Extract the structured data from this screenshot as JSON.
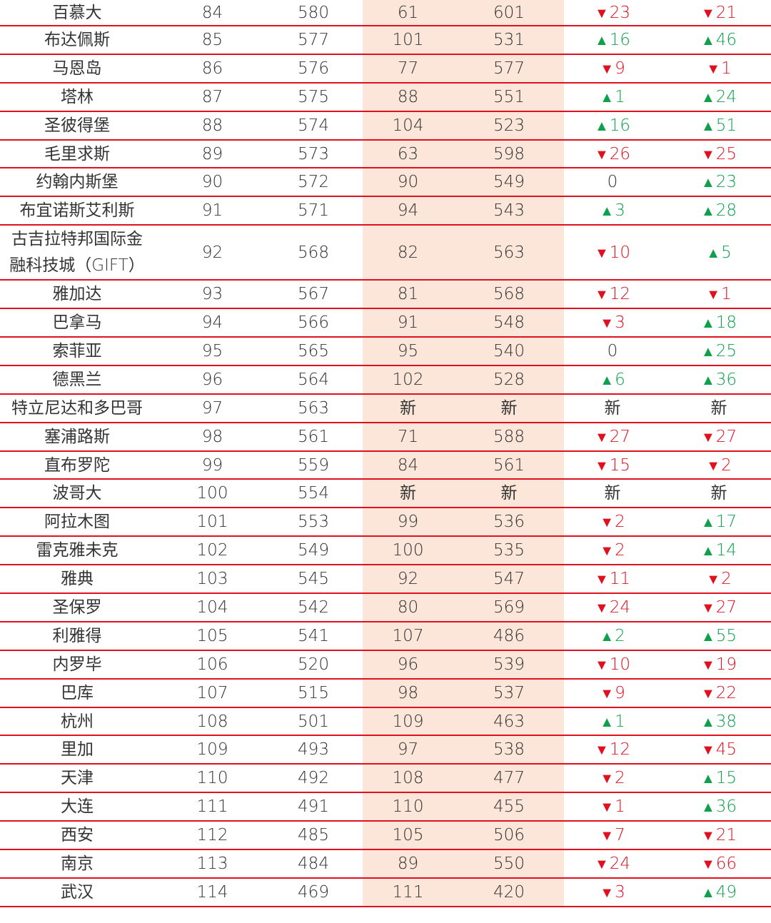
{
  "rows": [
    {
      "city": "百慕大",
      "rank": "84",
      "score": "580",
      "prev_rank": "61",
      "prev_score": "601",
      "change1": {
        "dir": "down",
        "value": "23"
      },
      "change2": {
        "dir": "down",
        "value": "21"
      }
    },
    {
      "city": "布达佩斯",
      "rank": "85",
      "score": "577",
      "prev_rank": "101",
      "prev_score": "531",
      "change1": {
        "dir": "up",
        "value": "16"
      },
      "change2": {
        "dir": "up",
        "value": "46"
      }
    },
    {
      "city": "马恩岛",
      "rank": "86",
      "score": "576",
      "prev_rank": "77",
      "prev_score": "577",
      "change1": {
        "dir": "down",
        "value": "9"
      },
      "change2": {
        "dir": "down",
        "value": "1"
      }
    },
    {
      "city": "塔林",
      "rank": "87",
      "score": "575",
      "prev_rank": "88",
      "prev_score": "551",
      "change1": {
        "dir": "up",
        "value": "1"
      },
      "change2": {
        "dir": "up",
        "value": "24"
      }
    },
    {
      "city": "圣彼得堡",
      "rank": "88",
      "score": "574",
      "prev_rank": "104",
      "prev_score": "523",
      "change1": {
        "dir": "up",
        "value": "16"
      },
      "change2": {
        "dir": "up",
        "value": "51"
      }
    },
    {
      "city": "毛里求斯",
      "rank": "89",
      "score": "573",
      "prev_rank": "63",
      "prev_score": "598",
      "change1": {
        "dir": "down",
        "value": "26"
      },
      "change2": {
        "dir": "down",
        "value": "25"
      }
    },
    {
      "city": "约翰内斯堡",
      "rank": "90",
      "score": "572",
      "prev_rank": "90",
      "prev_score": "549",
      "change1": {
        "dir": "none",
        "value": "0"
      },
      "change2": {
        "dir": "up",
        "value": "23"
      }
    },
    {
      "city": "布宜诺斯艾利斯",
      "rank": "91",
      "score": "571",
      "prev_rank": "94",
      "prev_score": "543",
      "change1": {
        "dir": "up",
        "value": "3"
      },
      "change2": {
        "dir": "up",
        "value": "28"
      }
    },
    {
      "city": "古吉拉特邦国际金\n融科技城（GIFT）",
      "rank": "92",
      "score": "568",
      "prev_rank": "82",
      "prev_score": "563",
      "change1": {
        "dir": "down",
        "value": "10"
      },
      "change2": {
        "dir": "up",
        "value": "5"
      }
    },
    {
      "city": "雅加达",
      "rank": "93",
      "score": "567",
      "prev_rank": "81",
      "prev_score": "568",
      "change1": {
        "dir": "down",
        "value": "12"
      },
      "change2": {
        "dir": "down",
        "value": "1"
      }
    },
    {
      "city": "巴拿马",
      "rank": "94",
      "score": "566",
      "prev_rank": "91",
      "prev_score": "548",
      "change1": {
        "dir": "down",
        "value": "3"
      },
      "change2": {
        "dir": "up",
        "value": "18"
      }
    },
    {
      "city": "索菲亚",
      "rank": "95",
      "score": "565",
      "prev_rank": "95",
      "prev_score": "540",
      "change1": {
        "dir": "none",
        "value": "0"
      },
      "change2": {
        "dir": "up",
        "value": "25"
      }
    },
    {
      "city": "德黑兰",
      "rank": "96",
      "score": "564",
      "prev_rank": "102",
      "prev_score": "528",
      "change1": {
        "dir": "up",
        "value": "6"
      },
      "change2": {
        "dir": "up",
        "value": "36"
      }
    },
    {
      "city": "特立尼达和多巴哥",
      "rank": "97",
      "score": "563",
      "prev_rank": "新",
      "prev_score": "新",
      "change1": {
        "dir": "none",
        "value": "新"
      },
      "change2": {
        "dir": "none",
        "value": "新"
      }
    },
    {
      "city": "塞浦路斯",
      "rank": "98",
      "score": "561",
      "prev_rank": "71",
      "prev_score": "588",
      "change1": {
        "dir": "down",
        "value": "27"
      },
      "change2": {
        "dir": "down",
        "value": "27"
      }
    },
    {
      "city": "直布罗陀",
      "rank": "99",
      "score": "559",
      "prev_rank": "84",
      "prev_score": "561",
      "change1": {
        "dir": "down",
        "value": "15"
      },
      "change2": {
        "dir": "down",
        "value": "2"
      }
    },
    {
      "city": "波哥大",
      "rank": "100",
      "score": "554",
      "prev_rank": "新",
      "prev_score": "新",
      "change1": {
        "dir": "none",
        "value": "新"
      },
      "change2": {
        "dir": "none",
        "value": "新"
      }
    },
    {
      "city": "阿拉木图",
      "rank": "101",
      "score": "553",
      "prev_rank": "99",
      "prev_score": "536",
      "change1": {
        "dir": "down",
        "value": "2"
      },
      "change2": {
        "dir": "up",
        "value": "17"
      }
    },
    {
      "city": "雷克雅未克",
      "rank": "102",
      "score": "549",
      "prev_rank": "100",
      "prev_score": "535",
      "change1": {
        "dir": "down",
        "value": "2"
      },
      "change2": {
        "dir": "up",
        "value": "14"
      }
    },
    {
      "city": "雅典",
      "rank": "103",
      "score": "545",
      "prev_rank": "92",
      "prev_score": "547",
      "change1": {
        "dir": "down",
        "value": "11"
      },
      "change2": {
        "dir": "down",
        "value": "2"
      }
    },
    {
      "city": "圣保罗",
      "rank": "104",
      "score": "542",
      "prev_rank": "80",
      "prev_score": "569",
      "change1": {
        "dir": "down",
        "value": "24"
      },
      "change2": {
        "dir": "down",
        "value": "27"
      }
    },
    {
      "city": "利雅得",
      "rank": "105",
      "score": "541",
      "prev_rank": "107",
      "prev_score": "486",
      "change1": {
        "dir": "up",
        "value": "2"
      },
      "change2": {
        "dir": "up",
        "value": "55"
      }
    },
    {
      "city": "内罗毕",
      "rank": "106",
      "score": "520",
      "prev_rank": "96",
      "prev_score": "539",
      "change1": {
        "dir": "down",
        "value": "10"
      },
      "change2": {
        "dir": "down",
        "value": "19"
      }
    },
    {
      "city": "巴库",
      "rank": "107",
      "score": "515",
      "prev_rank": "98",
      "prev_score": "537",
      "change1": {
        "dir": "down",
        "value": "9"
      },
      "change2": {
        "dir": "down",
        "value": "22"
      }
    },
    {
      "city": "杭州",
      "rank": "108",
      "score": "501",
      "prev_rank": "109",
      "prev_score": "463",
      "change1": {
        "dir": "up",
        "value": "1"
      },
      "change2": {
        "dir": "up",
        "value": "38"
      }
    },
    {
      "city": "里加",
      "rank": "109",
      "score": "493",
      "prev_rank": "97",
      "prev_score": "538",
      "change1": {
        "dir": "down",
        "value": "12"
      },
      "change2": {
        "dir": "down",
        "value": "45"
      }
    },
    {
      "city": "天津",
      "rank": "110",
      "score": "492",
      "prev_rank": "108",
      "prev_score": "477",
      "change1": {
        "dir": "down",
        "value": "2"
      },
      "change2": {
        "dir": "up",
        "value": "15"
      }
    },
    {
      "city": "大连",
      "rank": "111",
      "score": "491",
      "prev_rank": "110",
      "prev_score": "455",
      "change1": {
        "dir": "down",
        "value": "1"
      },
      "change2": {
        "dir": "up",
        "value": "36"
      }
    },
    {
      "city": "西安",
      "rank": "112",
      "score": "485",
      "prev_rank": "105",
      "prev_score": "506",
      "change1": {
        "dir": "down",
        "value": "7"
      },
      "change2": {
        "dir": "down",
        "value": "21"
      }
    },
    {
      "city": "南京",
      "rank": "113",
      "score": "484",
      "prev_rank": "89",
      "prev_score": "550",
      "change1": {
        "dir": "down",
        "value": "24"
      },
      "change2": {
        "dir": "down",
        "value": "66"
      }
    },
    {
      "city": "武汉",
      "rank": "114",
      "score": "469",
      "prev_rank": "111",
      "prev_score": "420",
      "change1": {
        "dir": "down",
        "value": "3"
      },
      "change2": {
        "dir": "up",
        "value": "49"
      }
    }
  ],
  "symbols": {
    "up": "▲",
    "down": "▼"
  },
  "colors": {
    "up": "#0ea04b",
    "down": "#e0101f",
    "band": "#fbe6d9",
    "rule": "#e0101f"
  }
}
